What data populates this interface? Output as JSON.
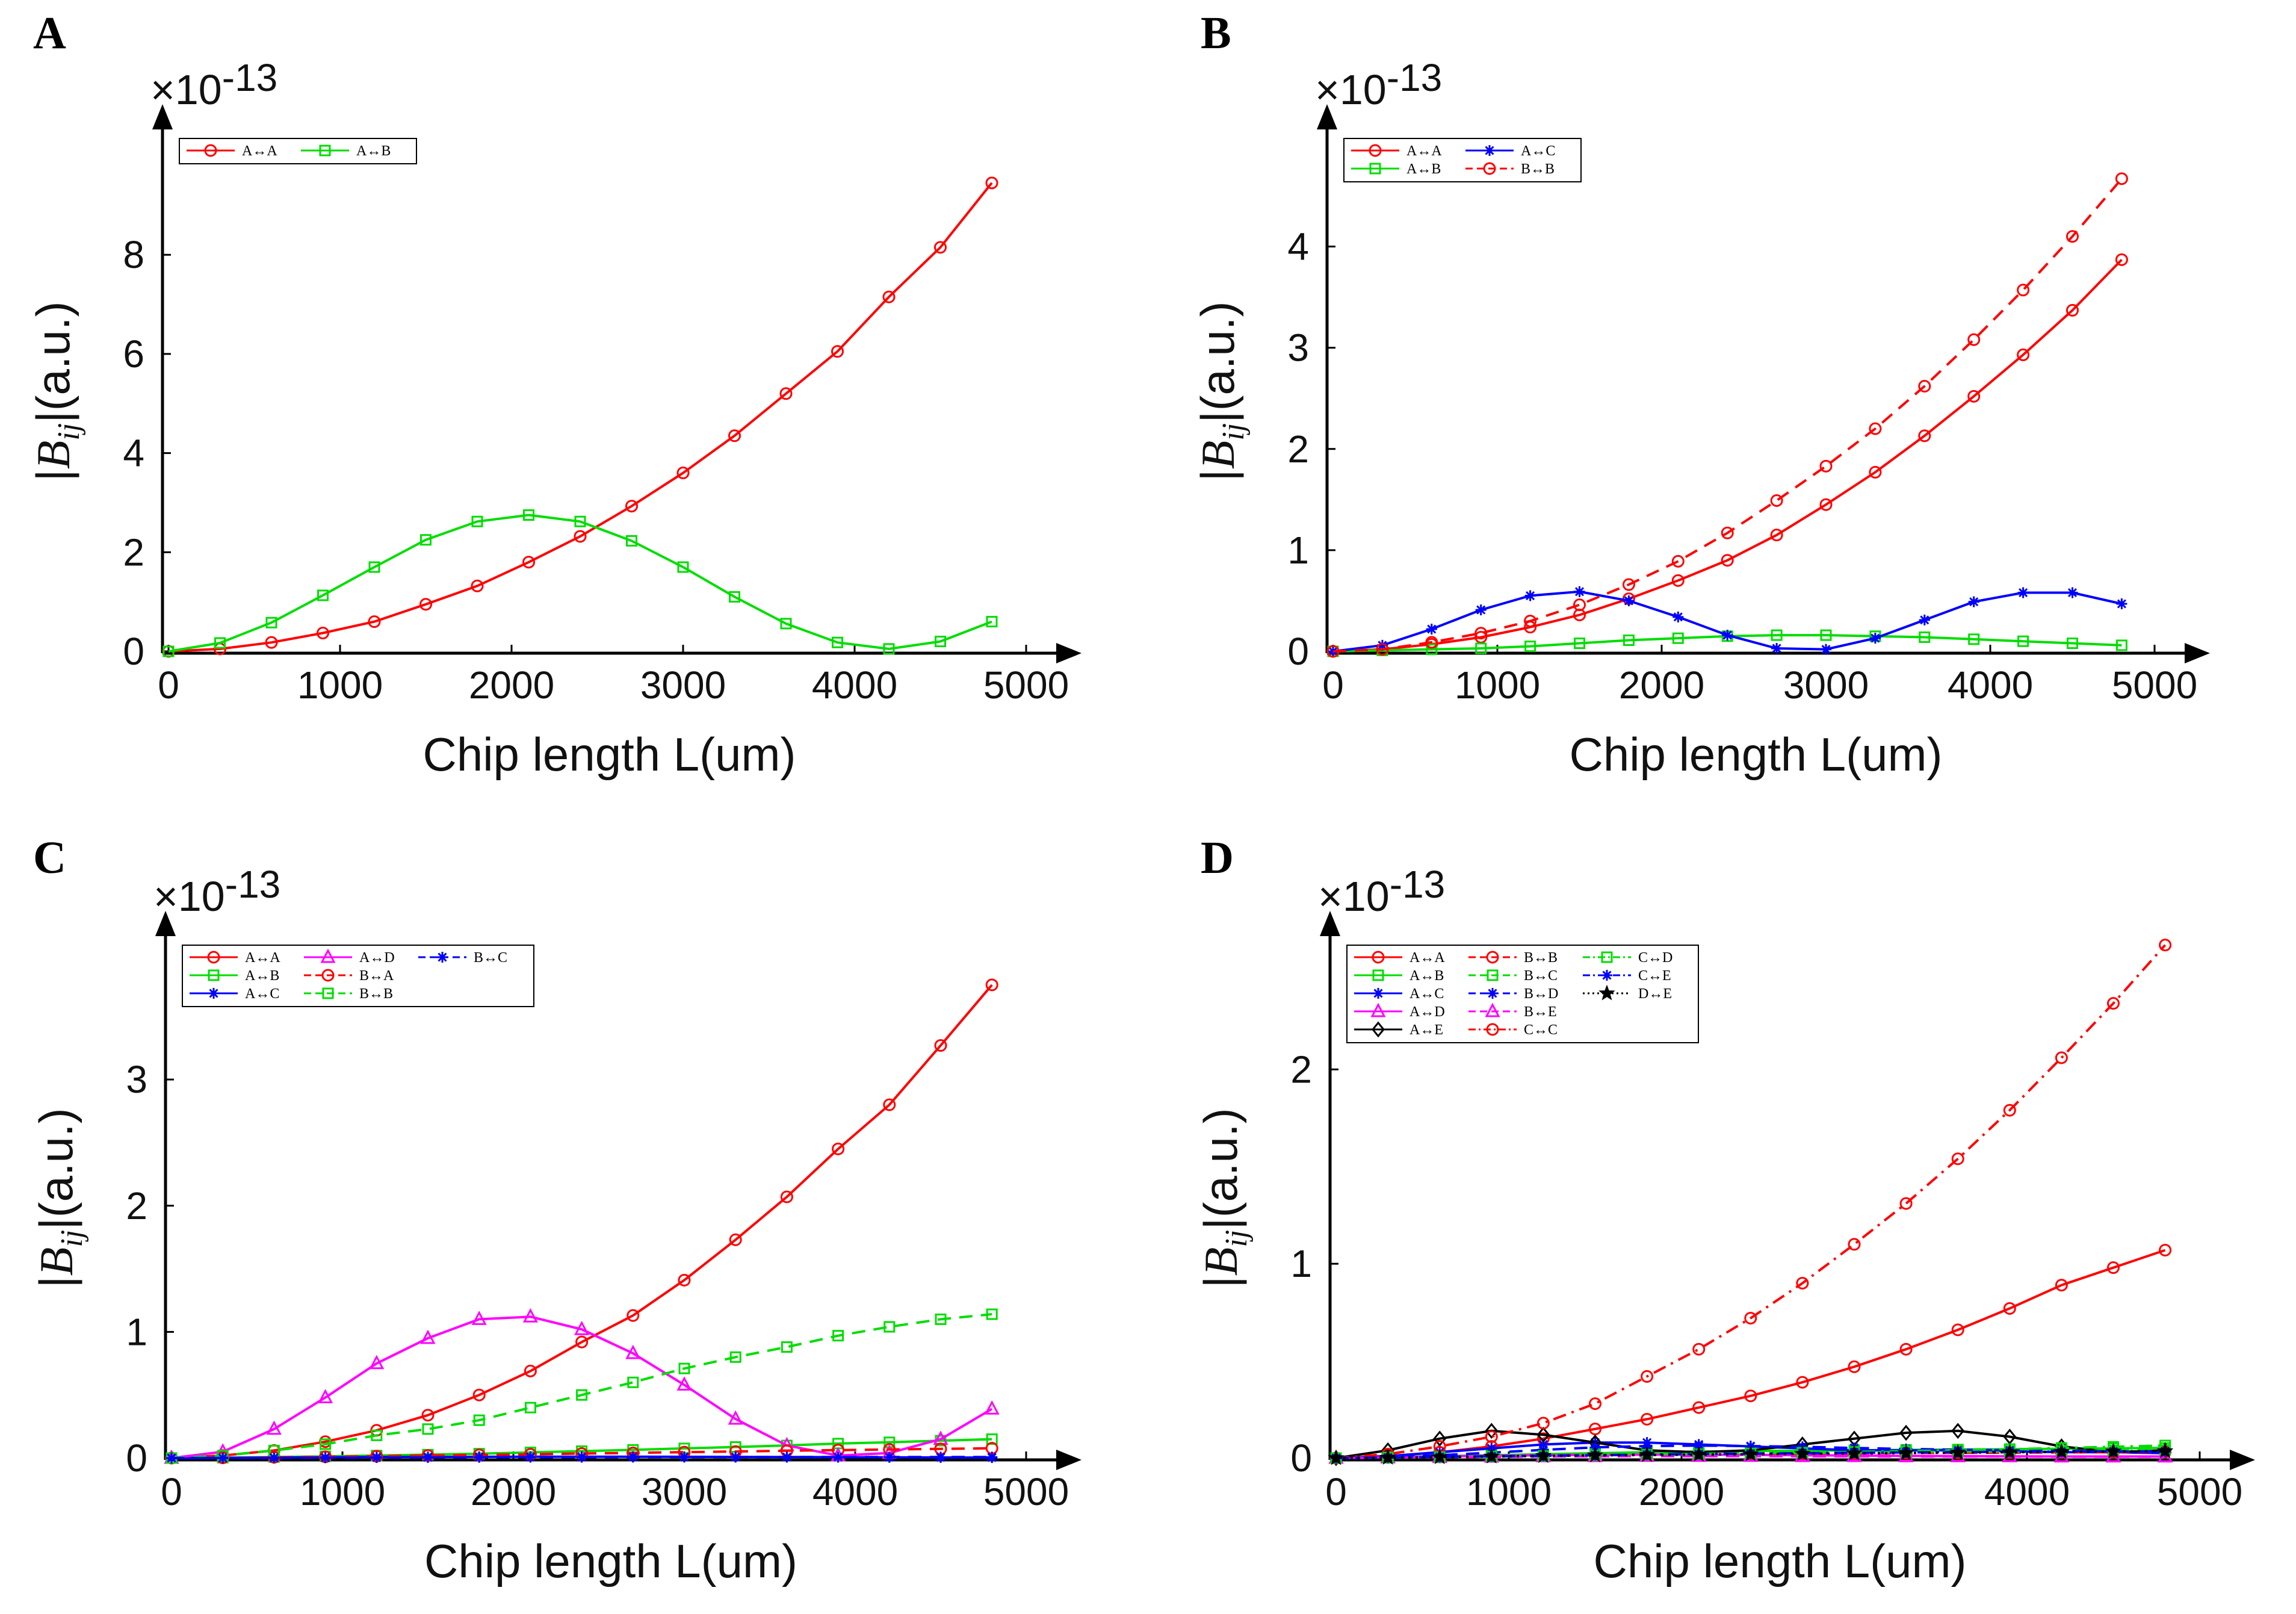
{
  "chart_data": [
    {
      "panel": "A",
      "type": "line",
      "xlabel": "Chip length L(um)",
      "ylabel": "|B_ij|(a.u.)",
      "ylabel_main": "B",
      "ylabel_sub": "ij",
      "ylabel_unit": "(a.u.)",
      "exponent_base": "×10",
      "exponent": "-13",
      "xlim": [
        0,
        5000
      ],
      "ylim": [
        0,
        9.8
      ],
      "xticks": [
        "0",
        "1000",
        "2000",
        "3000",
        "4000",
        "5000"
      ],
      "xtick_values": [
        0,
        1000,
        2000,
        3000,
        4000,
        5000
      ],
      "yticks": [
        "0",
        "2",
        "4",
        "6",
        "8"
      ],
      "ytick_values": [
        0,
        2,
        4,
        6,
        8
      ],
      "legend_cols": 2,
      "x": [
        0,
        300,
        600,
        900,
        1200,
        1500,
        1800,
        2100,
        2400,
        2700,
        3000,
        3300,
        3600,
        3900,
        4200,
        4500,
        4800
      ],
      "series": [
        {
          "name": "A↔A",
          "color": "#ff0000",
          "dash": "solid",
          "marker": "circle",
          "values": [
            0,
            0.05,
            0.18,
            0.37,
            0.6,
            0.95,
            1.32,
            1.8,
            2.32,
            2.93,
            3.6,
            4.35,
            5.2,
            6.05,
            7.15,
            8.15,
            9.45
          ]
        },
        {
          "name": "A↔B",
          "color": "#00dd00",
          "dash": "solid",
          "marker": "square",
          "values": [
            0,
            0.17,
            0.58,
            1.13,
            1.7,
            2.25,
            2.62,
            2.75,
            2.62,
            2.23,
            1.7,
            1.1,
            0.56,
            0.18,
            0.05,
            0.2,
            0.6
          ]
        }
      ]
    },
    {
      "panel": "B",
      "type": "line",
      "xlabel": "Chip length L(um)",
      "ylabel": "|B_ij|(a.u.)",
      "ylabel_main": "B",
      "ylabel_sub": "ij",
      "ylabel_unit": "(a.u.)",
      "exponent_base": "×10",
      "exponent": "-13",
      "xlim": [
        0,
        5000
      ],
      "ylim": [
        0,
        4.8
      ],
      "xticks": [
        "0",
        "1000",
        "2000",
        "3000",
        "4000",
        "5000"
      ],
      "xtick_values": [
        0,
        1000,
        2000,
        3000,
        4000,
        5000
      ],
      "yticks": [
        "0",
        "1",
        "2",
        "3",
        "4"
      ],
      "ytick_values": [
        0,
        1,
        2,
        3,
        4
      ],
      "legend_cols": 2,
      "x": [
        0,
        300,
        600,
        900,
        1200,
        1500,
        1800,
        2100,
        2400,
        2700,
        3000,
        3300,
        3600,
        3900,
        4200,
        4500,
        4800
      ],
      "series": [
        {
          "name": "A↔A",
          "color": "#ff0000",
          "dash": "solid",
          "marker": "circle",
          "values": [
            0,
            0.02,
            0.07,
            0.14,
            0.24,
            0.36,
            0.52,
            0.7,
            0.9,
            1.15,
            1.45,
            1.77,
            2.13,
            2.52,
            2.93,
            3.37,
            3.87
          ]
        },
        {
          "name": "A↔B",
          "color": "#00dd00",
          "dash": "solid",
          "marker": "square",
          "values": [
            0,
            0.01,
            0.02,
            0.03,
            0.05,
            0.08,
            0.11,
            0.13,
            0.15,
            0.16,
            0.16,
            0.15,
            0.14,
            0.12,
            0.1,
            0.08,
            0.06
          ]
        },
        {
          "name": "A↔C",
          "color": "#0000ff",
          "dash": "solid",
          "marker": "asterisk",
          "values": [
            0,
            0.06,
            0.22,
            0.41,
            0.55,
            0.59,
            0.5,
            0.34,
            0.16,
            0.03,
            0.02,
            0.13,
            0.31,
            0.49,
            0.58,
            0.58,
            0.47
          ]
        },
        {
          "name": "B↔B",
          "color": "#ff0000",
          "dash": "dashed",
          "marker": "circle",
          "values": [
            0,
            0.02,
            0.09,
            0.18,
            0.3,
            0.46,
            0.66,
            0.89,
            1.17,
            1.49,
            1.83,
            2.2,
            2.62,
            3.08,
            3.57,
            4.1,
            4.67
          ]
        }
      ]
    },
    {
      "panel": "C",
      "type": "line",
      "xlabel": "Chip length L(um)",
      "ylabel": "|B_ij|(a.u.)",
      "ylabel_main": "B",
      "ylabel_sub": "ij",
      "ylabel_unit": "(a.u.)",
      "exponent_base": "×10",
      "exponent": "-13",
      "xlim": [
        0,
        5000
      ],
      "ylim": [
        0,
        3.85
      ],
      "xticks": [
        "0",
        "1000",
        "2000",
        "3000",
        "4000",
        "5000"
      ],
      "xtick_values": [
        0,
        1000,
        2000,
        3000,
        4000,
        5000
      ],
      "yticks": [
        "0",
        "1",
        "2",
        "3"
      ],
      "ytick_values": [
        0,
        1,
        2,
        3
      ],
      "legend_cols": 3,
      "x": [
        0,
        300,
        600,
        900,
        1200,
        1500,
        1800,
        2100,
        2400,
        2700,
        3000,
        3300,
        3600,
        3900,
        4200,
        4500,
        4800
      ],
      "series": [
        {
          "name": "A↔A",
          "color": "#ff0000",
          "dash": "solid",
          "marker": "circle",
          "values": [
            0,
            0.02,
            0.06,
            0.13,
            0.22,
            0.34,
            0.5,
            0.69,
            0.92,
            1.13,
            1.41,
            1.73,
            2.07,
            2.45,
            2.8,
            3.27,
            3.75
          ]
        },
        {
          "name": "A↔B",
          "color": "#00dd00",
          "dash": "solid",
          "marker": "square",
          "values": [
            0,
            0.003,
            0.008,
            0.013,
            0.02,
            0.027,
            0.035,
            0.045,
            0.055,
            0.065,
            0.077,
            0.088,
            0.1,
            0.115,
            0.125,
            0.138,
            0.15
          ]
        },
        {
          "name": "A↔C",
          "color": "#0000ff",
          "dash": "solid",
          "marker": "asterisk",
          "values": [
            0,
            0.002,
            0.004,
            0.006,
            0.008,
            0.009,
            0.01,
            0.011,
            0.011,
            0.011,
            0.01,
            0.009,
            0.008,
            0.007,
            0.006,
            0.005,
            0.004
          ]
        },
        {
          "name": "A↔D",
          "color": "#ff00ff",
          "dash": "solid",
          "marker": "triangle",
          "values": [
            0,
            0.05,
            0.23,
            0.48,
            0.75,
            0.95,
            1.1,
            1.12,
            1.02,
            0.83,
            0.58,
            0.31,
            0.1,
            0.02,
            0.04,
            0.15,
            0.39
          ]
        },
        {
          "name": "B↔A",
          "color": "#ff0000",
          "dash": "dashed",
          "marker": "circle",
          "values": [
            0,
            0.002,
            0.006,
            0.01,
            0.015,
            0.02,
            0.025,
            0.03,
            0.036,
            0.041,
            0.047,
            0.052,
            0.058,
            0.063,
            0.068,
            0.073,
            0.078
          ]
        },
        {
          "name": "B↔B",
          "color": "#00dd00",
          "dash": "dashed",
          "marker": "square",
          "values": [
            0,
            0.02,
            0.06,
            0.11,
            0.18,
            0.23,
            0.3,
            0.4,
            0.5,
            0.6,
            0.71,
            0.8,
            0.88,
            0.97,
            1.04,
            1.1,
            1.14
          ]
        },
        {
          "name": "B↔C",
          "color": "#0000ff",
          "dash": "dashed",
          "marker": "asterisk",
          "values": [
            0,
            0.001,
            0.002,
            0.003,
            0.004,
            0.005,
            0.006,
            0.007,
            0.007,
            0.008,
            0.008,
            0.008,
            0.008,
            0.008,
            0.008,
            0.008,
            0.008
          ]
        }
      ]
    },
    {
      "panel": "D",
      "type": "line",
      "xlabel": "Chip length L(um)",
      "ylabel": "|B_ij|(a.u.)",
      "ylabel_main": "B",
      "ylabel_sub": "ij",
      "ylabel_unit": "(a.u.)",
      "exponent_base": "×10",
      "exponent": "-13",
      "xlim": [
        0,
        5000
      ],
      "ylim": [
        0,
        2.5
      ],
      "xticks": [
        "0",
        "1000",
        "2000",
        "3000",
        "4000",
        "5000"
      ],
      "xtick_values": [
        0,
        1000,
        2000,
        3000,
        4000,
        5000
      ],
      "yticks": [
        "0",
        "1",
        "2"
      ],
      "ytick_values": [
        0,
        1,
        2
      ],
      "legend_cols": 3,
      "x": [
        0,
        300,
        600,
        900,
        1200,
        1500,
        1800,
        2100,
        2400,
        2700,
        3000,
        3300,
        3600,
        3900,
        4200,
        4500,
        4800
      ],
      "series": [
        {
          "name": "A↔A",
          "color": "#ff0000",
          "dash": "solid",
          "marker": "circle",
          "values": [
            0,
            0.01,
            0.03,
            0.06,
            0.1,
            0.15,
            0.2,
            0.26,
            0.32,
            0.39,
            0.47,
            0.56,
            0.66,
            0.77,
            0.89,
            0.98,
            1.07
          ]
        },
        {
          "name": "A↔B",
          "color": "#00dd00",
          "dash": "solid",
          "marker": "square",
          "values": [
            0,
            0.005,
            0.01,
            0.015,
            0.02,
            0.025,
            0.03,
            0.033,
            0.036,
            0.038,
            0.04,
            0.042,
            0.044,
            0.046,
            0.048,
            0.05,
            0.052
          ]
        },
        {
          "name": "A↔C",
          "color": "#0000ff",
          "dash": "solid",
          "marker": "asterisk",
          "values": [
            0,
            0.01,
            0.03,
            0.05,
            0.07,
            0.08,
            0.08,
            0.07,
            0.06,
            0.05,
            0.04,
            0.04,
            0.04,
            0.035,
            0.03,
            0.03,
            0.025
          ]
        },
        {
          "name": "A↔D",
          "color": "#ff00ff",
          "dash": "solid",
          "marker": "triangle",
          "values": [
            0,
            0.004,
            0.008,
            0.012,
            0.015,
            0.017,
            0.018,
            0.018,
            0.017,
            0.015,
            0.013,
            0.011,
            0.01,
            0.009,
            0.008,
            0.008,
            0.008
          ]
        },
        {
          "name": "A↔E",
          "color": "#000000",
          "dash": "solid",
          "marker": "diamond",
          "values": [
            0,
            0.04,
            0.1,
            0.14,
            0.12,
            0.08,
            0.04,
            0.03,
            0.04,
            0.07,
            0.1,
            0.13,
            0.14,
            0.11,
            0.06,
            0.03,
            0.04
          ]
        },
        {
          "name": "B↔B",
          "color": "#ff0000",
          "dash": "dashed",
          "marker": "circle",
          "values": [
            0,
            0.003,
            0.006,
            0.009,
            0.012,
            0.015,
            0.017,
            0.019,
            0.021,
            0.023,
            0.025,
            0.026,
            0.027,
            0.028,
            0.029,
            0.03,
            0.031
          ]
        },
        {
          "name": "B↔C",
          "color": "#00dd00",
          "dash": "dashed",
          "marker": "square",
          "values": [
            0,
            0.003,
            0.006,
            0.01,
            0.013,
            0.016,
            0.019,
            0.022,
            0.025,
            0.027,
            0.029,
            0.031,
            0.033,
            0.035,
            0.037,
            0.039,
            0.041
          ]
        },
        {
          "name": "B↔D",
          "color": "#0000ff",
          "dash": "dashed",
          "marker": "asterisk",
          "values": [
            0,
            0.006,
            0.015,
            0.028,
            0.042,
            0.055,
            0.062,
            0.064,
            0.062,
            0.058,
            0.052,
            0.047,
            0.043,
            0.04,
            0.037,
            0.034,
            0.032
          ]
        },
        {
          "name": "B↔E",
          "color": "#ff00ff",
          "dash": "dashed",
          "marker": "triangle",
          "values": [
            0,
            0.002,
            0.004,
            0.006,
            0.008,
            0.009,
            0.01,
            0.01,
            0.01,
            0.009,
            0.009,
            0.008,
            0.008,
            0.008,
            0.007,
            0.007,
            0.007
          ]
        },
        {
          "name": "C↔C",
          "color": "#ff0000",
          "dash": "dashdot",
          "marker": "circle",
          "values": [
            0,
            0.02,
            0.06,
            0.11,
            0.18,
            0.28,
            0.42,
            0.56,
            0.72,
            0.9,
            1.1,
            1.31,
            1.54,
            1.79,
            2.06,
            2.34,
            2.64
          ]
        },
        {
          "name": "C↔D",
          "color": "#00dd00",
          "dash": "dashdot",
          "marker": "square",
          "values": [
            0,
            0.002,
            0.005,
            0.008,
            0.011,
            0.014,
            0.017,
            0.02,
            0.024,
            0.028,
            0.032,
            0.036,
            0.041,
            0.046,
            0.052,
            0.058,
            0.065
          ]
        },
        {
          "name": "C↔E",
          "color": "#0000ff",
          "dash": "dashdot",
          "marker": "asterisk",
          "values": [
            0,
            0.003,
            0.006,
            0.009,
            0.012,
            0.015,
            0.018,
            0.021,
            0.023,
            0.025,
            0.027,
            0.029,
            0.031,
            0.032,
            0.033,
            0.034,
            0.035
          ]
        },
        {
          "name": "D↔E",
          "color": "#000000",
          "dash": "dotted",
          "marker": "star",
          "values": [
            0,
            0.002,
            0.005,
            0.008,
            0.011,
            0.014,
            0.016,
            0.018,
            0.02,
            0.022,
            0.024,
            0.026,
            0.028,
            0.03,
            0.032,
            0.034,
            0.036
          ]
        }
      ]
    }
  ]
}
